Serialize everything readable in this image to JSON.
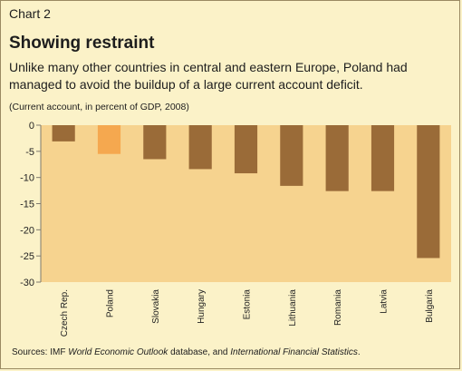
{
  "header": {
    "kicker": "Chart 2",
    "title": "Showing restraint",
    "subtitle": "Unlike many other countries in central and eastern Europe, Poland had managed to avoid the buildup of a large current account deficit.",
    "units": "(Current account, in percent of GDP, 2008)"
  },
  "source": {
    "prefix": "Sources: IMF ",
    "title1": "World Economic Outlook",
    "middle": " database, and ",
    "title2": "International Financial Statistics",
    "suffix": "."
  },
  "colors": {
    "background": "#fbf2c8",
    "plot_background": "#f6d38f",
    "bar": "#9a6b38",
    "highlight_bar": "#f5a84f",
    "axis": "#7f7a6e"
  },
  "chart_data": {
    "type": "bar",
    "categories": [
      "Czech Rep.",
      "Poland",
      "Slovakia",
      "Hungary",
      "Estonia",
      "Lithuania",
      "Romania",
      "Latvia",
      "Bulgaria"
    ],
    "values": [
      -3.1,
      -5.5,
      -6.5,
      -8.4,
      -9.2,
      -11.6,
      -12.6,
      -12.6,
      -25.4
    ],
    "highlight": [
      "Poland"
    ],
    "ylim": [
      -30,
      0
    ],
    "yticks": [
      0,
      -5,
      -10,
      -15,
      -20,
      -25,
      -30
    ],
    "ytick_labels": [
      "0",
      "-5",
      "-10",
      "-15",
      "-20",
      "-25",
      "-30"
    ],
    "grid": false
  }
}
